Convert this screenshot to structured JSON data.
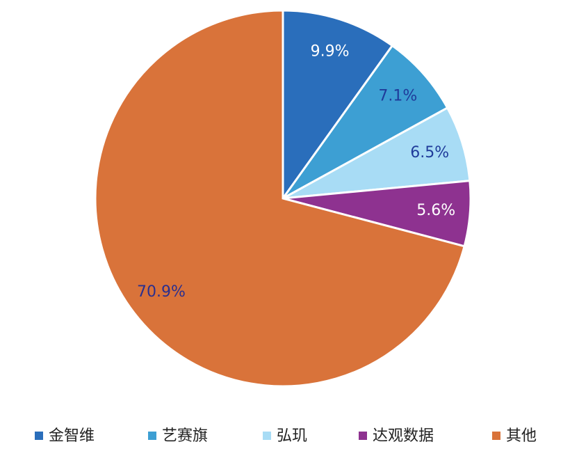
{
  "chart_data": {
    "type": "pie",
    "categories": [
      "金智维",
      "艺赛旗",
      "弘玑",
      "达观数据",
      "其他"
    ],
    "values": [
      9.9,
      7.1,
      6.5,
      5.6,
      70.9
    ],
    "value_labels": [
      "9.9%",
      "7.1%",
      "6.5%",
      "5.6%",
      "70.9%"
    ],
    "colors": [
      "#2a6ebb",
      "#3d9fd3",
      "#a8dcf5",
      "#8e3290",
      "#d9733a"
    ],
    "label_colors": [
      "#ffffff",
      "#1f3b9a",
      "#1f3b9a",
      "#ffffff",
      "#2a2f8f"
    ],
    "legend": "bottom"
  }
}
